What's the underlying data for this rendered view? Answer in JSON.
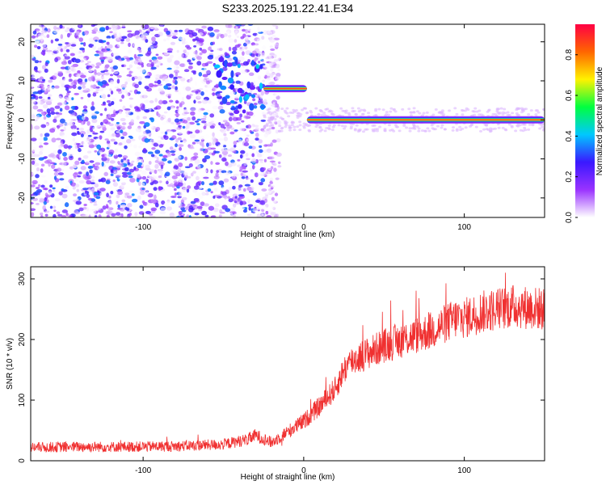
{
  "title": "S233.2025.191.22.41.E34",
  "colors": {
    "snr_line": "#f03030",
    "frame": "#000000"
  },
  "chart_data": [
    {
      "type": "heatmap",
      "xlabel": "Height of straight line (km)",
      "ylabel": "Frequency (Hz)",
      "xlim": [
        -170,
        150
      ],
      "ylim": [
        -25,
        24.5
      ],
      "x_ticks": [
        -100,
        0,
        100
      ],
      "y_ticks": [
        -20,
        -10,
        0,
        10,
        20
      ],
      "colorbar": {
        "label": "Normalized spectral amplitude",
        "range": [
          0,
          0.95
        ],
        "ticks": [
          0.0,
          0.2,
          0.4,
          0.6,
          0.8
        ],
        "tick_labels": [
          "0.0",
          "0.2",
          "0.4",
          "0.6",
          "0.8"
        ],
        "colors": [
          "#ffffff",
          "#9a33ff",
          "#3a18ff",
          "#00c8ff",
          "#00ff40",
          "#fff200",
          "#ff6600",
          "#ff0044"
        ]
      },
      "ridge": [
        {
          "x_range": [
            -25,
            2
          ],
          "frequency": 8
        },
        {
          "x_range": [
            2,
            150
          ],
          "frequency": 0
        }
      ],
      "noise_region": {
        "x_range": [
          -170,
          -25
        ],
        "frequency_range": [
          -25,
          24.5
        ]
      }
    },
    {
      "type": "line",
      "xlabel": "Height of straight line (km)",
      "ylabel": "SNR (10 * v/v)",
      "xlim": [
        -170,
        150
      ],
      "ylim": [
        0,
        320
      ],
      "x_ticks": [
        -100,
        0,
        100
      ],
      "y_ticks": [
        0,
        100,
        200,
        300
      ],
      "series": [
        {
          "x": [
            -170,
            -140,
            -110,
            -80,
            -50,
            -35,
            -30,
            -20,
            0,
            10,
            20,
            25,
            30,
            50,
            80,
            95,
            100,
            110,
            130,
            150
          ],
          "values": [
            22,
            23,
            23,
            24,
            27,
            35,
            42,
            30,
            65,
            90,
            120,
            150,
            165,
            190,
            215,
            235,
            235,
            245,
            255,
            250
          ]
        }
      ]
    }
  ]
}
